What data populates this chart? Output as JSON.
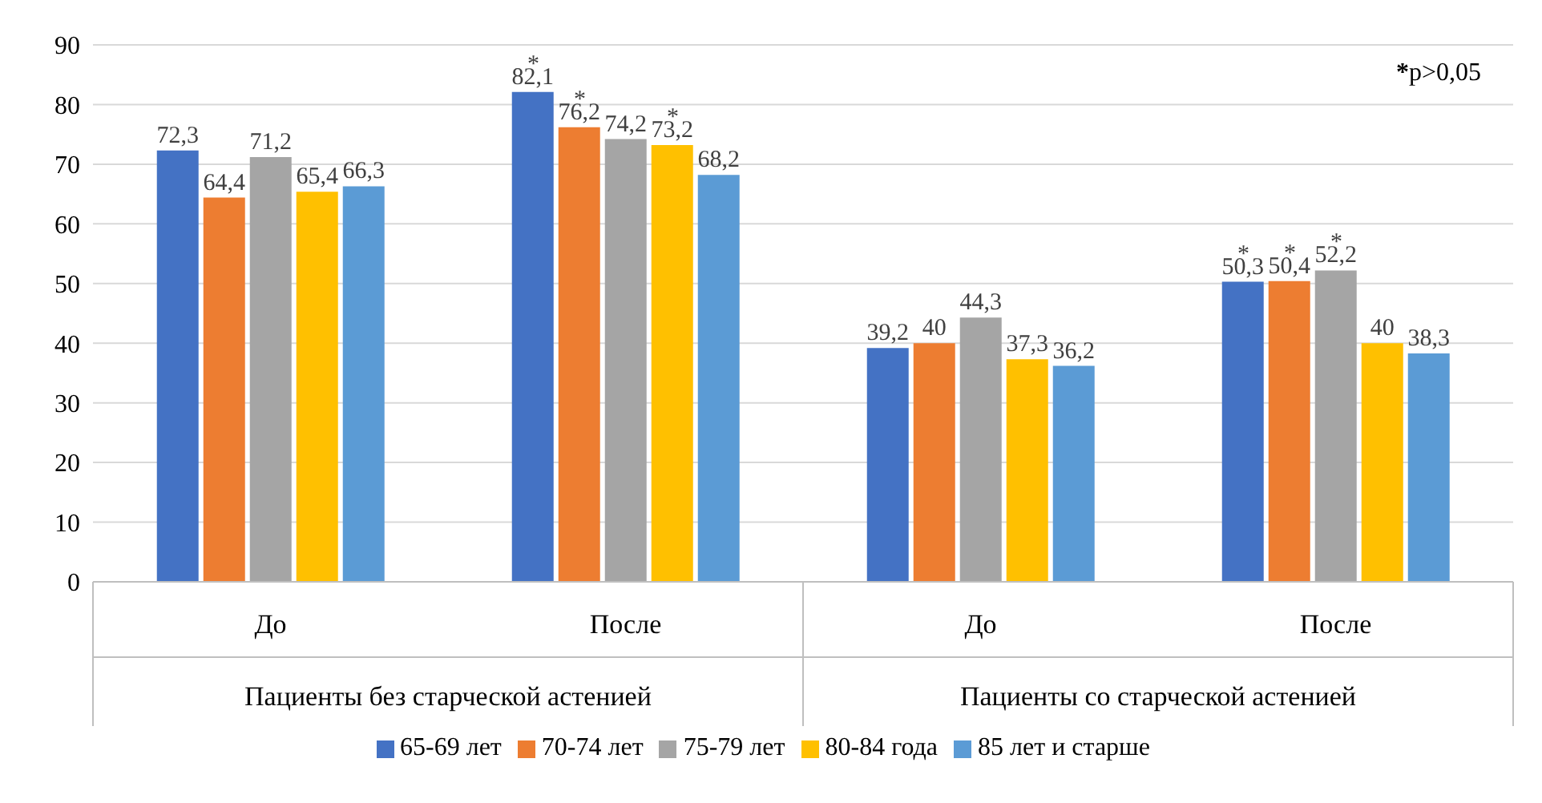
{
  "chart_data": {
    "type": "bar",
    "categories": [
      "До",
      "После",
      "До",
      "После"
    ],
    "series": [
      {
        "name": "65-69 лет",
        "color": "#4472c4",
        "values": [
          72.3,
          82.1,
          39.2,
          50.3
        ],
        "value_labels": [
          "72,3",
          "82,1$^{*}$",
          "39,2",
          "50,3$^{*}$"
        ]
      },
      {
        "name": "70-74 лет",
        "color": "#ed7d31",
        "values": [
          64.4,
          76.2,
          40,
          50.4
        ],
        "value_labels": [
          "64,4",
          "76,2$^{*}$",
          "40",
          "50,4$^{*}$"
        ]
      },
      {
        "name": "75-79 лет",
        "color": "#a5a5a5",
        "values": [
          71.2,
          74.2,
          44.3,
          52.2
        ],
        "value_labels": [
          "71,2",
          "74,2",
          "44,3",
          "52,2$^{*}$"
        ]
      },
      {
        "name": "80-84 года",
        "color": "#ffc000",
        "values": [
          65.4,
          73.2,
          37.3,
          40
        ],
        "value_labels": [
          "65,4",
          "73,2$^{*}$",
          "37,3",
          "40"
        ]
      },
      {
        "name": "85 лет и старше",
        "color": "#5b9bd5",
        "values": [
          66.3,
          68.2,
          36.2,
          38.3
        ],
        "value_labels": [
          "66,3",
          "68,2",
          "36,2",
          "38,3"
        ]
      }
    ],
    "ylim": [
      0,
      90
    ],
    "yticks": [
      0,
      10,
      20,
      30,
      40,
      50,
      60,
      70,
      80,
      90
    ],
    "grid": "y",
    "legend": "bottom",
    "annotations": [
      "*p>0,05",
      "Пациенты без старческой астенией",
      "Пациенты со старческой астенией"
    ]
  }
}
